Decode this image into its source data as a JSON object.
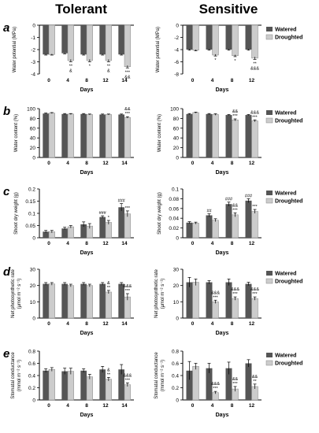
{
  "figure": {
    "column_titles": [
      "Tolerant",
      "Sensitive"
    ],
    "legend_labels": [
      "Watered",
      "Droughted"
    ],
    "colors": {
      "watered": "#555555",
      "droughted": "#cccccc",
      "axis": "#000000"
    },
    "rows": [
      {
        "letter": "a",
        "ylabel": "Water potential (MPa)",
        "xlabel": "Days"
      },
      {
        "letter": "b",
        "ylabel": "Water content (%)",
        "xlabel": "Days"
      },
      {
        "letter": "c",
        "ylabel": "Shoot dry weight (g)",
        "xlabel": "Days"
      },
      {
        "letter": "d",
        "ylabel": "Net photosynthetic rate",
        "ylabel2": "(µmol m⁻² s⁻¹)",
        "xlabel": "Days"
      },
      {
        "letter": "e",
        "ylabel": "Stomatal conductance",
        "ylabel2": "(mmol m⁻² s⁻¹)",
        "xlabel": "Days"
      }
    ]
  },
  "chart_data": [
    {
      "id": "a-tolerant",
      "type": "bar",
      "categories": [
        "0",
        "4",
        "8",
        "12",
        "14"
      ],
      "ylabel": "Water potential (MPa)",
      "xlabel": "Days",
      "ylim": [
        -4,
        0
      ],
      "yticks": [
        0,
        -1,
        -2,
        -3,
        -4
      ],
      "series": [
        {
          "name": "Watered",
          "values": [
            -2.4,
            -2.3,
            -2.4,
            -2.4,
            -2.4
          ],
          "errors": [
            0.05,
            0.05,
            0.05,
            0.05,
            0.05
          ]
        },
        {
          "name": "Droughted",
          "values": [
            -2.4,
            -2.9,
            -2.9,
            -2.9,
            -3.4
          ],
          "errors": [
            0.05,
            0.1,
            0.1,
            0.1,
            0.1
          ]
        }
      ],
      "annotations": [
        {
          "index": 1,
          "lines": [
            "**",
            "&"
          ]
        },
        {
          "index": 2,
          "lines": [
            "*"
          ]
        },
        {
          "index": 3,
          "lines": [
            "**",
            "&"
          ]
        },
        {
          "index": 4,
          "lines": [
            "***",
            "&&"
          ]
        }
      ]
    },
    {
      "id": "a-sensitive",
      "type": "bar",
      "categories": [
        "0",
        "4",
        "8",
        "12"
      ],
      "ylabel": "Water potential (MPa)",
      "xlabel": "Days",
      "ylim": [
        -8,
        0
      ],
      "yticks": [
        0,
        -2,
        -4,
        -6,
        -8
      ],
      "legend": "right",
      "series": [
        {
          "name": "Watered",
          "values": [
            -4.0,
            -4.0,
            -4.0,
            -4.0
          ],
          "errors": [
            0.1,
            0.1,
            0.1,
            0.1
          ]
        },
        {
          "name": "Droughted",
          "values": [
            -4.1,
            -4.9,
            -5.0,
            -5.4
          ],
          "errors": [
            0.1,
            0.15,
            0.15,
            0.2
          ]
        }
      ],
      "annotations": [
        {
          "index": 1,
          "lines": [
            "*"
          ]
        },
        {
          "index": 2,
          "lines": [
            "*"
          ]
        },
        {
          "index": 3,
          "lines": [
            "**",
            "&&&"
          ]
        }
      ]
    },
    {
      "id": "b-tolerant",
      "type": "bar",
      "categories": [
        "0",
        "4",
        "8",
        "12",
        "14"
      ],
      "ylabel": "Water content (%)",
      "xlabel": "Days",
      "ylim": [
        0,
        100
      ],
      "yticks": [
        0,
        20,
        40,
        60,
        80,
        100
      ],
      "series": [
        {
          "name": "Watered",
          "values": [
            90,
            89,
            89,
            88,
            88
          ],
          "errors": [
            1,
            1,
            1,
            1,
            1
          ]
        },
        {
          "name": "Droughted",
          "values": [
            91,
            89,
            88,
            88,
            82
          ],
          "errors": [
            1,
            1,
            1,
            1,
            1.5
          ]
        }
      ],
      "annotations": [
        {
          "index": 4,
          "lines": [
            "&&",
            "***"
          ]
        }
      ]
    },
    {
      "id": "b-sensitive",
      "type": "bar",
      "categories": [
        "0",
        "4",
        "8",
        "12"
      ],
      "ylabel": "Water content (%)",
      "xlabel": "Days",
      "ylim": [
        0,
        100
      ],
      "yticks": [
        0,
        20,
        40,
        60,
        80,
        100
      ],
      "legend": "right",
      "series": [
        {
          "name": "Watered",
          "values": [
            89,
            89,
            87,
            87
          ],
          "errors": [
            1,
            1,
            1,
            1
          ]
        },
        {
          "name": "Droughted",
          "values": [
            92,
            88,
            77,
            75
          ],
          "errors": [
            1,
            1.5,
            2,
            2
          ]
        }
      ],
      "annotations": [
        {
          "index": 2,
          "lines": [
            "&&",
            "***"
          ]
        },
        {
          "index": 3,
          "lines": [
            "&&&",
            "***"
          ]
        }
      ]
    },
    {
      "id": "c-tolerant",
      "type": "bar",
      "categories": [
        "0",
        "4",
        "8",
        "12",
        "14"
      ],
      "ylabel": "Shoot dry weight (g)",
      "xlabel": "Days",
      "ylim": [
        0,
        0.2
      ],
      "yticks": [
        0,
        0.05,
        0.1,
        0.15,
        0.2
      ],
      "series": [
        {
          "name": "Watered",
          "values": [
            0.025,
            0.038,
            0.055,
            0.085,
            0.125
          ],
          "errors": [
            0.005,
            0.005,
            0.01,
            0.005,
            0.015
          ]
        },
        {
          "name": "Droughted",
          "values": [
            0.025,
            0.045,
            0.048,
            0.063,
            0.098
          ],
          "errors": [
            0.005,
            0.005,
            0.01,
            0.008,
            0.012
          ]
        }
      ],
      "annotations": [
        {
          "index": 3,
          "lines": [
            "*"
          ],
          "wlines": [
            "###"
          ]
        },
        {
          "index": 4,
          "lines": [
            "***"
          ],
          "wlines": [
            "###"
          ]
        }
      ]
    },
    {
      "id": "c-sensitive",
      "type": "bar",
      "categories": [
        "0",
        "4",
        "8",
        "12"
      ],
      "ylabel": "Shoot dry weight (g)",
      "xlabel": "Days",
      "ylim": [
        0,
        0.1
      ],
      "yticks": [
        0,
        0.02,
        0.04,
        0.06,
        0.08,
        0.1
      ],
      "legend": "right",
      "series": [
        {
          "name": "Watered",
          "values": [
            0.031,
            0.046,
            0.069,
            0.076
          ],
          "errors": [
            0.002,
            0.003,
            0.004,
            0.004
          ]
        },
        {
          "name": "Droughted",
          "values": [
            0.03,
            0.036,
            0.047,
            0.054
          ],
          "errors": [
            0.002,
            0.003,
            0.004,
            0.004
          ]
        }
      ],
      "annotations": [
        {
          "index": 2,
          "lines": [
            "&&",
            "***"
          ],
          "wlines": [
            "###"
          ]
        },
        {
          "index": 3,
          "lines": [
            "***"
          ],
          "wlines": [
            "###"
          ]
        }
      ],
      "wannotations_extra": [
        {
          "index": 1,
          "lines": [
            "##"
          ]
        }
      ]
    },
    {
      "id": "d-tolerant",
      "type": "bar",
      "categories": [
        "0",
        "4",
        "8",
        "12",
        "14"
      ],
      "ylabel": "Net photosynthetic rate",
      "xlabel": "Days",
      "ylim": [
        0,
        30
      ],
      "yticks": [
        0,
        10,
        20,
        30
      ],
      "series": [
        {
          "name": "Watered",
          "values": [
            21,
            21,
            21,
            21,
            21
          ],
          "errors": [
            0.8,
            0.8,
            0.8,
            0.8,
            0.8
          ]
        },
        {
          "name": "Droughted",
          "values": [
            21,
            20,
            20,
            16,
            13
          ],
          "errors": [
            0.8,
            0.8,
            0.8,
            1,
            2
          ]
        }
      ],
      "annotations": [
        {
          "index": 3,
          "lines": [
            "&",
            "**"
          ]
        },
        {
          "index": 4,
          "lines": [
            "&&&",
            "***"
          ]
        }
      ]
    },
    {
      "id": "d-sensitive",
      "type": "bar",
      "categories": [
        "0",
        "4",
        "8",
        "12"
      ],
      "ylabel": "Net photosynthetic rate",
      "xlabel": "Days",
      "ylim": [
        0,
        30
      ],
      "yticks": [
        0,
        10,
        20,
        30
      ],
      "legend": "right",
      "series": [
        {
          "name": "Watered",
          "values": [
            22,
            22,
            22,
            21
          ],
          "errors": [
            3,
            1,
            2,
            1
          ]
        },
        {
          "name": "Droughted",
          "values": [
            22,
            10,
            12,
            12
          ],
          "errors": [
            2,
            1,
            1,
            1
          ]
        }
      ],
      "annotations": [
        {
          "index": 1,
          "lines": [
            "&&&",
            "***"
          ]
        },
        {
          "index": 2,
          "lines": [
            "&&&",
            "***"
          ]
        },
        {
          "index": 3,
          "lines": [
            "&&&",
            "***"
          ]
        }
      ]
    },
    {
      "id": "e-tolerant",
      "type": "bar",
      "categories": [
        "0",
        "4",
        "8",
        "12",
        "14"
      ],
      "ylabel": "Stomatal conductance",
      "xlabel": "Days",
      "ylim": [
        0,
        0.8
      ],
      "yticks": [
        0,
        0.2,
        0.4,
        0.6,
        0.8
      ],
      "series": [
        {
          "name": "Watered",
          "values": [
            0.48,
            0.47,
            0.48,
            0.5,
            0.5
          ],
          "errors": [
            0.03,
            0.05,
            0.03,
            0.05,
            0.08
          ]
        },
        {
          "name": "Droughted",
          "values": [
            0.5,
            0.47,
            0.38,
            0.34,
            0.25
          ],
          "errors": [
            0.03,
            0.05,
            0.04,
            0.03,
            0.03
          ]
        }
      ],
      "annotations": [
        {
          "index": 3,
          "lines": [
            "&",
            "**"
          ]
        },
        {
          "index": 4,
          "lines": [
            "&&&",
            "***"
          ]
        }
      ]
    },
    {
      "id": "e-sensitive",
      "type": "bar",
      "categories": [
        "0",
        "4",
        "8",
        "12"
      ],
      "ylabel": "Stomatal conductance",
      "xlabel": "Days",
      "ylim": [
        0,
        0.8
      ],
      "yticks": [
        0,
        0.2,
        0.4,
        0.6,
        0.8
      ],
      "legend": "right",
      "series": [
        {
          "name": "Watered",
          "values": [
            0.48,
            0.52,
            0.52,
            0.6
          ],
          "errors": [
            0.15,
            0.08,
            0.1,
            0.06
          ]
        },
        {
          "name": "Droughted",
          "values": [
            0.55,
            0.12,
            0.18,
            0.22
          ],
          "errors": [
            0.05,
            0.02,
            0.04,
            0.04
          ]
        }
      ],
      "annotations": [
        {
          "index": 1,
          "lines": [
            "&&&",
            "***"
          ]
        },
        {
          "index": 2,
          "lines": [
            "&&",
            "***"
          ]
        },
        {
          "index": 3,
          "lines": [
            "&&",
            "**"
          ]
        }
      ]
    }
  ]
}
